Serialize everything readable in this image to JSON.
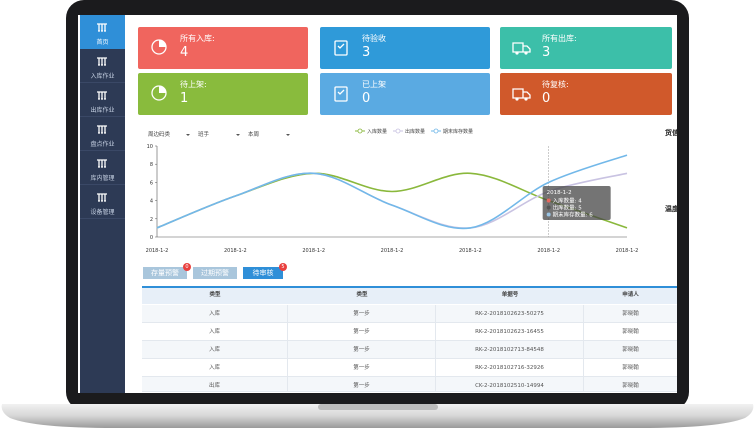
{
  "sidebar": [
    "首页",
    "入库作业",
    "出库作业",
    "盘点作业",
    "库内管理",
    "设备管理"
  ],
  "cards": [
    {
      "label": "所有入库:",
      "value": 4,
      "color": "#f0655e"
    },
    {
      "label": "待验收",
      "value": 3,
      "color": "#2f9ad9"
    },
    {
      "label": "所有出库:",
      "value": 3,
      "color": "#3cbfa9"
    },
    {
      "label": "待上架:",
      "value": 1,
      "color": "#89bb3d"
    },
    {
      "label": "已上架",
      "value": 0,
      "color": "#5aaae2"
    },
    {
      "label": "待复核:",
      "value": 0,
      "color": "#d0592b"
    }
  ],
  "filters": [
    "周边码类",
    "班手",
    "本周"
  ],
  "chart_data": {
    "type": "line",
    "x": [
      "2018-1-2",
      "2018-1-2",
      "2018-1-2",
      "2018-1-2",
      "2018-1-2",
      "2018-1-2",
      "2018-1-2"
    ],
    "series": [
      {
        "name": "入库数量",
        "color": "#8ab83c",
        "values": [
          1,
          4.5,
          7,
          5,
          7,
          4,
          1
        ]
      },
      {
        "name": "出库数量",
        "color": "#c9c3e2",
        "values": [
          1,
          4.5,
          7,
          3.5,
          1,
          5,
          7
        ]
      },
      {
        "name": "期末库存数量",
        "color": "#72b8e9",
        "values": [
          1,
          4.5,
          7,
          3.5,
          1,
          6,
          9
        ]
      }
    ],
    "ylim": [
      0,
      10
    ],
    "yticks": [
      0,
      2,
      4,
      6,
      8,
      10
    ],
    "tooltip": {
      "title": "2018-1-2",
      "lines": [
        "入库数量: 4",
        "出库数量: 5",
        "期末库存数量: 6"
      ]
    }
  },
  "side_labels": [
    "货信",
    "温度"
  ],
  "tabs": [
    {
      "label": "存量预警",
      "badge": 0
    },
    {
      "label": "过期预警"
    },
    {
      "label": "待审核",
      "badge": 5
    }
  ],
  "table": {
    "headers": [
      "类型",
      "类型",
      "单据号",
      "申请人"
    ],
    "rows": [
      [
        "入库",
        "第一步",
        "RK-2-2018102623-50275",
        "郭晓翰"
      ],
      [
        "入库",
        "第一步",
        "RK-2-2018102623-16455",
        "郭晓翰"
      ],
      [
        "入库",
        "第一步",
        "RK-2-2018102713-84548",
        "郭晓翰"
      ],
      [
        "入库",
        "第一步",
        "RK-2-2018102716-32926",
        "郭晓翰"
      ],
      [
        "出库",
        "第一步",
        "CK-2-2018102510-14994",
        "郭晓翰"
      ]
    ]
  }
}
